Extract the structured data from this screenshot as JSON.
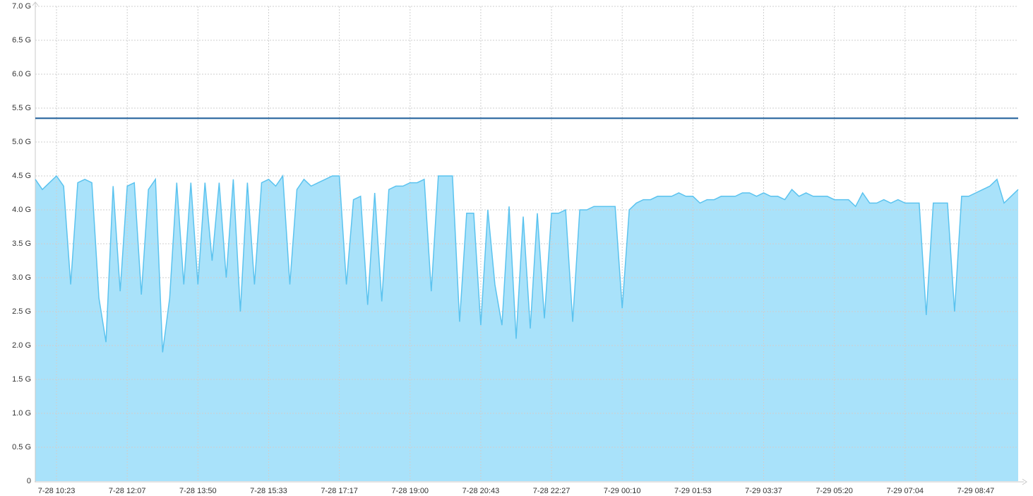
{
  "chart_data": {
    "type": "area",
    "categories": [
      null,
      null,
      null,
      "7-28 10:23",
      null,
      null,
      null,
      null,
      null,
      null,
      null,
      null,
      null,
      "7-28 12:07",
      null,
      null,
      null,
      null,
      null,
      null,
      null,
      null,
      null,
      "7-28 13:50",
      null,
      null,
      null,
      null,
      null,
      null,
      null,
      null,
      null,
      "7-28 15:33",
      null,
      null,
      null,
      null,
      null,
      null,
      null,
      null,
      null,
      "7-28 17:17",
      null,
      null,
      null,
      null,
      null,
      null,
      null,
      null,
      null,
      "7-28 19:00",
      null,
      null,
      null,
      null,
      null,
      null,
      null,
      null,
      null,
      "7-28 20:43",
      null,
      null,
      null,
      null,
      null,
      null,
      null,
      null,
      null,
      "7-28 22:27",
      null,
      null,
      null,
      null,
      null,
      null,
      null,
      null,
      null,
      "7-29 00:10",
      null,
      null,
      null,
      null,
      null,
      null,
      null,
      null,
      null,
      "7-29 01:53",
      null,
      null,
      null,
      null,
      null,
      null,
      null,
      null,
      null,
      "7-29 03:37",
      null,
      null,
      null,
      null,
      null,
      null,
      null,
      null,
      null,
      "7-29 05:20",
      null,
      null,
      null,
      null,
      null,
      null,
      null,
      null,
      null,
      "7-29 07:04",
      null,
      null,
      null,
      null,
      null,
      null,
      null,
      null,
      null,
      "7-29 08:47",
      null,
      null,
      null,
      null,
      null,
      null
    ],
    "series": [
      {
        "color": "#5bc3ef",
        "fill": "#a9e2fa",
        "values": [
          4.45,
          4.3,
          4.4,
          4.5,
          4.35,
          2.9,
          4.4,
          4.45,
          4.4,
          2.7,
          2.05,
          4.35,
          2.8,
          4.35,
          4.4,
          2.75,
          4.3,
          4.45,
          1.9,
          2.7,
          4.4,
          2.9,
          4.4,
          2.9,
          4.4,
          3.25,
          4.4,
          3.0,
          4.45,
          2.5,
          4.4,
          2.9,
          4.4,
          4.45,
          4.35,
          4.5,
          2.9,
          4.3,
          4.45,
          4.35,
          4.4,
          4.45,
          4.5,
          4.5,
          2.9,
          4.15,
          4.2,
          2.6,
          4.25,
          2.65,
          4.3,
          4.35,
          4.35,
          4.4,
          4.4,
          4.45,
          2.8,
          4.5,
          4.5,
          4.5,
          2.35,
          3.95,
          3.95,
          2.3,
          4.0,
          2.9,
          2.3,
          4.05,
          2.1,
          3.9,
          2.25,
          3.95,
          2.4,
          3.95,
          3.95,
          4.0,
          2.35,
          4.0,
          4.0,
          4.05,
          4.05,
          4.05,
          4.05,
          2.55,
          4.0,
          4.1,
          4.15,
          4.15,
          4.2,
          4.2,
          4.2,
          4.25,
          4.2,
          4.2,
          4.1,
          4.15,
          4.15,
          4.2,
          4.2,
          4.2,
          4.25,
          4.25,
          4.2,
          4.25,
          4.2,
          4.2,
          4.15,
          4.3,
          4.2,
          4.25,
          4.2,
          4.2,
          4.2,
          4.15,
          4.15,
          4.15,
          4.05,
          4.25,
          4.1,
          4.1,
          4.15,
          4.1,
          4.15,
          4.1,
          4.1,
          4.1,
          2.45,
          4.1,
          4.1,
          4.1,
          2.5,
          4.2,
          4.2,
          4.25,
          4.3,
          4.35,
          4.45,
          4.1,
          4.2,
          4.3
        ]
      }
    ],
    "threshold": {
      "value": 5.35,
      "color": "#1b5b98"
    },
    "ylim": [
      0,
      7
    ],
    "yticks": [
      0,
      {
        "value": 0.5,
        "label": "0.5 G"
      },
      {
        "value": 1,
        "label": "1.0 G"
      },
      {
        "value": 1.5,
        "label": "1.5 G"
      },
      {
        "value": 2,
        "label": "2.0 G"
      },
      {
        "value": 2.5,
        "label": "2.5 G"
      },
      {
        "value": 3,
        "label": "3.0 G"
      },
      {
        "value": 3.5,
        "label": "3.5 G"
      },
      {
        "value": 4,
        "label": "4.0 G"
      },
      {
        "value": 4.5,
        "label": "4.5 G"
      },
      {
        "value": 5,
        "label": "5.0 G"
      },
      {
        "value": 5.5,
        "label": "5.5 G"
      },
      {
        "value": 6,
        "label": "6.0 G"
      },
      {
        "value": 6.5,
        "label": "6.5 G"
      },
      {
        "value": 7,
        "label": "7.0 G"
      }
    ],
    "grid": true
  }
}
